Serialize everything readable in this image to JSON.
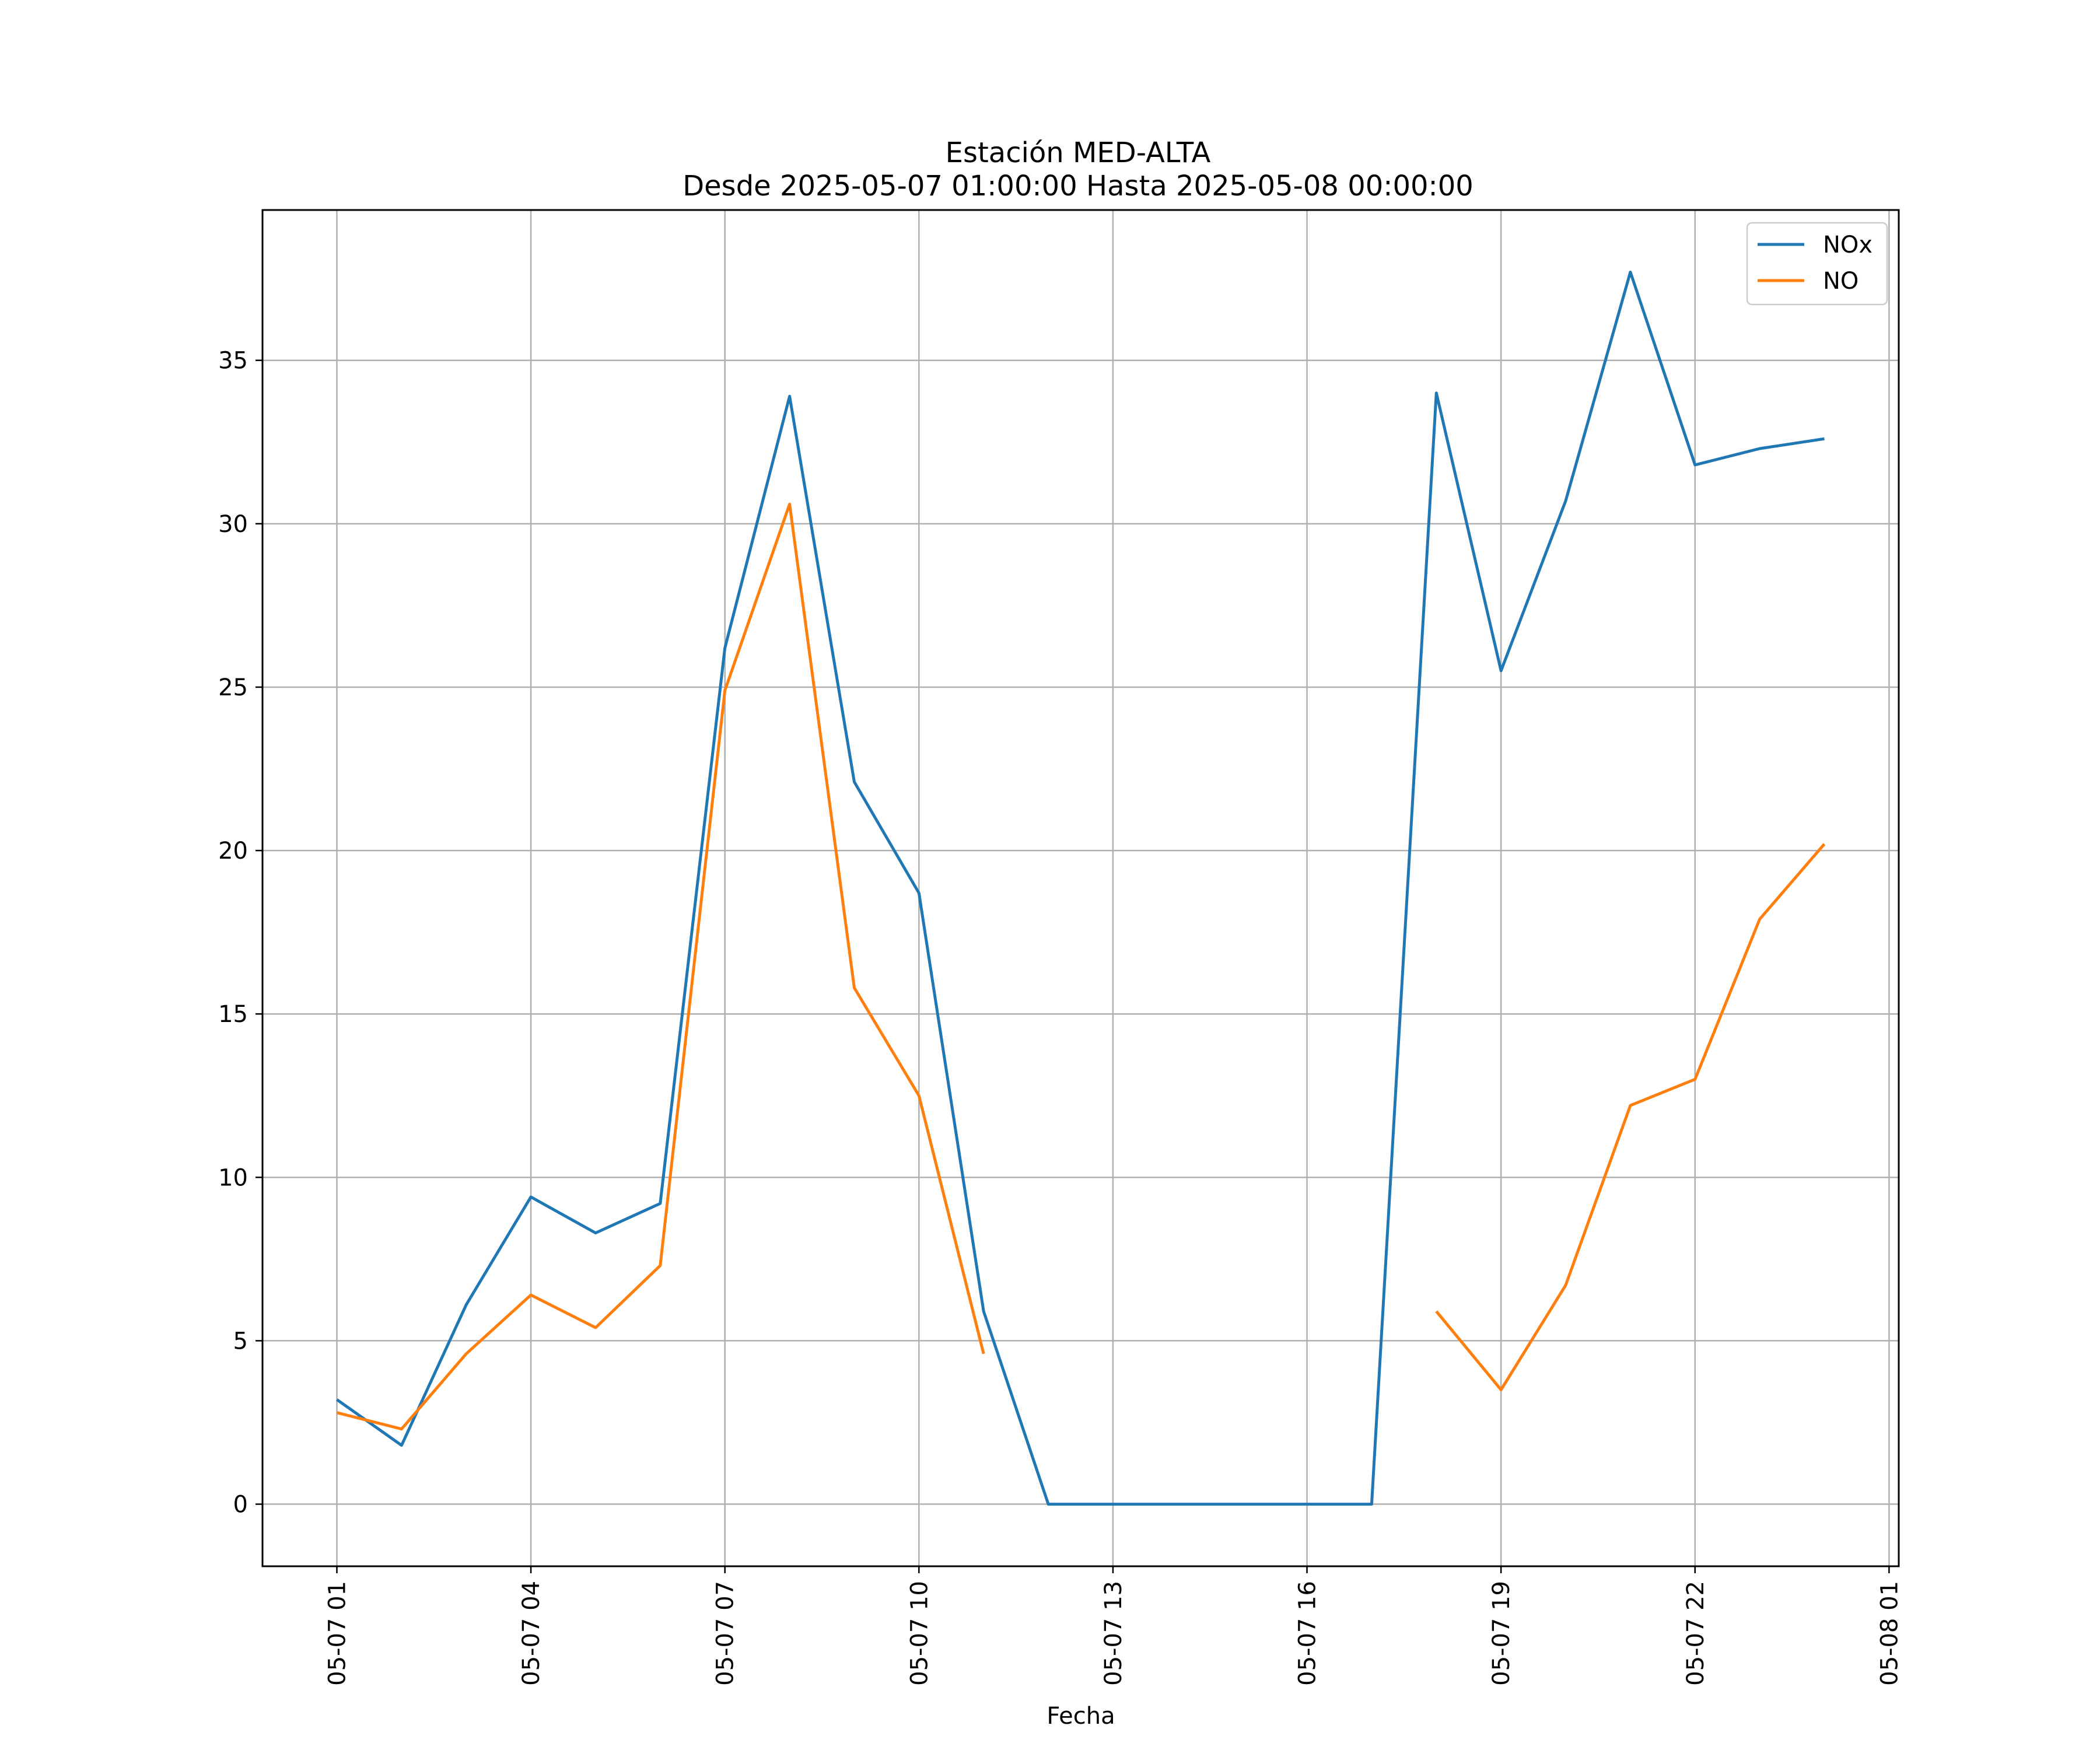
{
  "chart_data": {
    "type": "line",
    "title": "Estación MED-ALTA",
    "subtitle": "Desde 2025-05-07 01:00:00 Hasta 2025-05-08 00:00:00",
    "xlabel": "Fecha",
    "ylabel": "",
    "x": [
      "2025-05-07 01:00",
      "2025-05-07 02:00",
      "2025-05-07 03:00",
      "2025-05-07 04:00",
      "2025-05-07 05:00",
      "2025-05-07 06:00",
      "2025-05-07 07:00",
      "2025-05-07 08:00",
      "2025-05-07 09:00",
      "2025-05-07 10:00",
      "2025-05-07 11:00",
      "2025-05-07 12:00",
      "2025-05-07 13:00",
      "2025-05-07 14:00",
      "2025-05-07 15:00",
      "2025-05-07 16:00",
      "2025-05-07 17:00",
      "2025-05-07 18:00",
      "2025-05-07 19:00",
      "2025-05-07 20:00",
      "2025-05-07 21:00",
      "2025-05-07 22:00",
      "2025-05-07 23:00",
      "2025-05-08 00:00"
    ],
    "series": [
      {
        "name": "NOx",
        "color": "#1f77b4",
        "values": [
          3.2,
          1.8,
          6.1,
          9.4,
          8.3,
          9.2,
          26.2,
          33.9,
          22.1,
          18.7,
          5.9,
          0.0,
          0.0,
          0.0,
          0.0,
          0.0,
          0.0,
          34.0,
          25.5,
          30.7,
          37.7,
          31.8,
          32.3,
          32.6
        ]
      },
      {
        "name": "NO",
        "color": "#ff7f0e",
        "values": [
          2.8,
          2.3,
          4.6,
          6.4,
          5.4,
          7.3,
          24.9,
          30.6,
          15.8,
          12.5,
          4.6,
          null,
          null,
          null,
          null,
          null,
          null,
          5.9,
          3.5,
          6.7,
          12.2,
          13.0,
          17.9,
          20.2
        ]
      }
    ],
    "xticks": [
      "05-07 01",
      "05-07 04",
      "05-07 07",
      "05-07 10",
      "05-07 13",
      "05-07 16",
      "05-07 19",
      "05-07 22",
      "05-08 01"
    ],
    "xtick_hours": [
      1,
      4,
      7,
      10,
      13,
      16,
      19,
      22,
      25
    ],
    "xlim_hours": [
      -0.15,
      25.15
    ],
    "yticks": [
      "0",
      "5",
      "10",
      "15",
      "20",
      "25",
      "30",
      "35"
    ],
    "ytick_values": [
      0,
      5,
      10,
      15,
      20,
      25,
      30,
      35
    ],
    "ylim": [
      -1.9,
      39.6
    ],
    "grid": true,
    "legend_position": "top-right"
  }
}
